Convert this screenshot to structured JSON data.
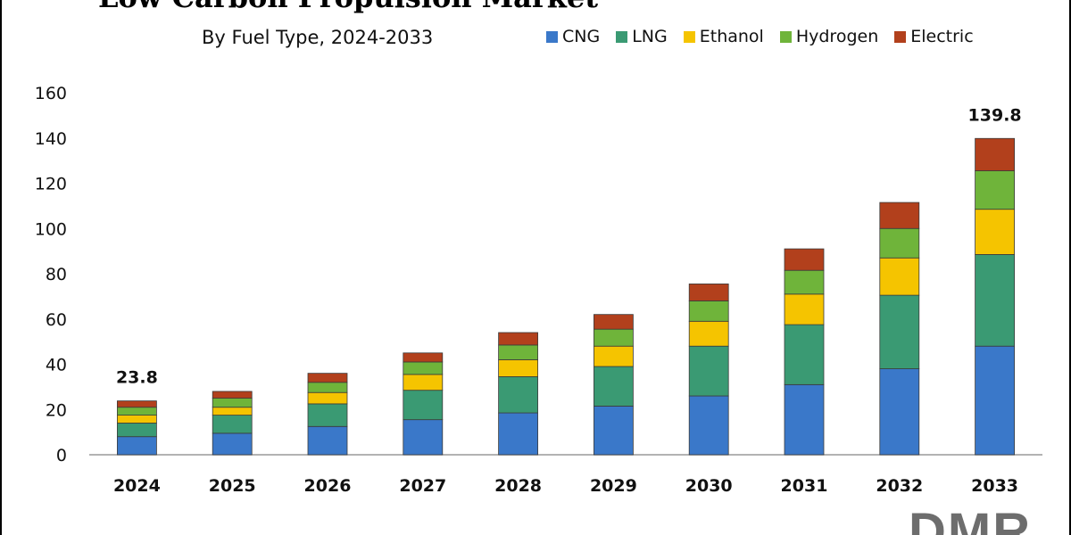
{
  "title": "Low Carbon Propulsion Market",
  "subtitle": "By Fuel Type, 2024-2033",
  "logo_text": "DMR",
  "colors": {
    "CNG": "#3a78c9",
    "LNG": "#3a9a73",
    "Ethanol": "#f5c400",
    "Hydrogen": "#6fb43a",
    "Electric": "#b2401c"
  },
  "chart_data": {
    "type": "bar",
    "stacked": true,
    "title": "Low Carbon Propulsion Market",
    "subtitle": "By Fuel Type, 2024-2033",
    "xlabel": "",
    "ylabel": "",
    "ylim": [
      0,
      160
    ],
    "yticks": [
      0,
      20,
      40,
      60,
      80,
      100,
      120,
      140,
      160
    ],
    "grid": false,
    "legend": "top-right",
    "categories": [
      "2024",
      "2025",
      "2026",
      "2027",
      "2028",
      "2029",
      "2030",
      "2031",
      "2032",
      "2033"
    ],
    "series": [
      {
        "name": "CNG",
        "values": [
          8,
          9.5,
          12.5,
          15.5,
          18.5,
          21.5,
          26,
          31,
          38,
          48
        ]
      },
      {
        "name": "LNG",
        "values": [
          6,
          8,
          10,
          13,
          16,
          17.5,
          22,
          26.5,
          32.5,
          40.5
        ]
      },
      {
        "name": "Ethanol",
        "values": [
          3.5,
          3.5,
          5,
          7,
          7.5,
          9,
          11,
          13.5,
          16.5,
          20
        ]
      },
      {
        "name": "Hydrogen",
        "values": [
          3.5,
          4,
          4.5,
          5.5,
          6.5,
          7.5,
          9,
          10.5,
          13,
          17
        ]
      },
      {
        "name": "Electric",
        "values": [
          2.8,
          3,
          4,
          4,
          5.5,
          6.5,
          7.5,
          9.5,
          11.5,
          14.3
        ]
      }
    ],
    "annotations": [
      {
        "category": "2024",
        "text": "23.8"
      },
      {
        "category": "2033",
        "text": "139.8"
      }
    ]
  }
}
